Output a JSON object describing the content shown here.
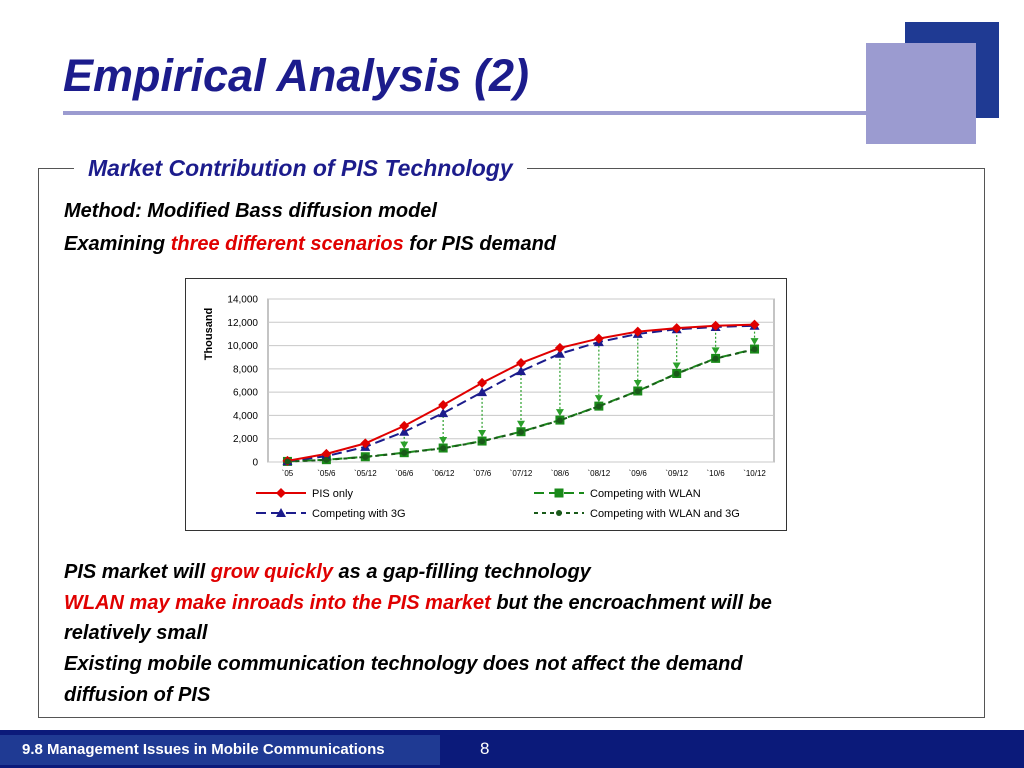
{
  "slide": {
    "title": "Empirical Analysis (2)",
    "section_title": "Market Contribution of PIS Technology",
    "method": "Method: Modified Bass diffusion model",
    "examining": {
      "prefix": "Examining ",
      "highlight": "three different scenarios",
      "suffix": " for PIS demand"
    },
    "bullet1": {
      "prefix": "PIS market will ",
      "highlight": "grow quickly",
      "suffix": " as a gap-filling technology"
    },
    "bullet2": {
      "highlight": "WLAN may make inroads into the PIS market",
      "suffix": " but the encroachment will be",
      "line2": "relatively small"
    },
    "bullet3": {
      "line1": "Existing mobile communication technology does not affect the demand",
      "line2": "diffusion of PIS"
    },
    "footer_text": "9.8 Management Issues in Mobile Communications",
    "page_number": "8"
  },
  "colors": {
    "title": "#1c1c8c",
    "highlight": "#e00000",
    "footer": "#0b1a7a",
    "accent_light": "#9b9bd0",
    "accent_dark": "#1f3a93"
  },
  "chart_data": {
    "type": "line",
    "ylabel": "Thousand",
    "ylim": [
      0,
      14000
    ],
    "yticks": [
      "14,000",
      "12,000",
      "10,000",
      "8,000",
      "6,000",
      "4,000",
      "2,000",
      "0"
    ],
    "categories": [
      "`05",
      "`05/6",
      "`05/12",
      "`06/6",
      "`06/12",
      "`07/6",
      "`07/12",
      "`08/6",
      "`08/12",
      "`09/6",
      "`09/12",
      "`10/6",
      "`10/12"
    ],
    "grid": true,
    "legend_position": "bottom",
    "series": [
      {
        "name": "PIS only",
        "color": "#e00000",
        "marker": "diamond",
        "dash": "solid",
        "values": [
          100,
          700,
          1600,
          3100,
          4900,
          6800,
          8500,
          9800,
          10600,
          11200,
          11500,
          11700,
          11800
        ]
      },
      {
        "name": "Competing with WLAN",
        "color": "#1a8a1a",
        "marker": "square",
        "dash": "long",
        "values": [
          50,
          200,
          450,
          800,
          1200,
          1800,
          2600,
          3600,
          4800,
          6100,
          7600,
          8900,
          9700
        ]
      },
      {
        "name": "Competing with 3G",
        "color": "#1c1c8c",
        "marker": "triangle",
        "dash": "long",
        "values": [
          80,
          500,
          1300,
          2600,
          4200,
          6000,
          7800,
          9300,
          10300,
          11000,
          11400,
          11600,
          11700
        ]
      },
      {
        "name": "Competing with WLAN and 3G",
        "color": "#1a5a1a",
        "marker": "circle",
        "dash": "short",
        "values": [
          40,
          180,
          430,
          780,
          1180,
          1780,
          2580,
          3580,
          4780,
          6080,
          7580,
          8880,
          9680
        ]
      }
    ]
  }
}
